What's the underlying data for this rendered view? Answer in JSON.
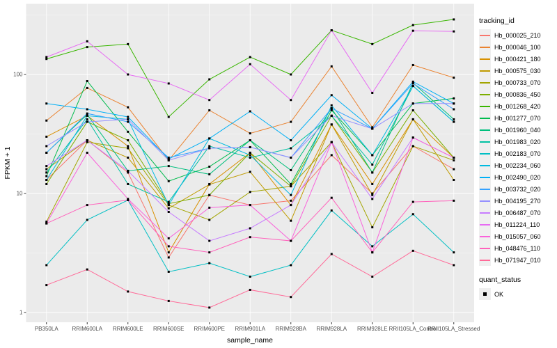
{
  "figure": {
    "legend_title_tracking": "tracking_id",
    "legend_title_quant": "quant_status",
    "quant_ok_label": "OK"
  },
  "chart_data": {
    "type": "line",
    "title": "",
    "xlabel": "sample_name",
    "ylabel": "FPKM + 1",
    "y_scale": "log10",
    "y_ticks": [
      1,
      10,
      100
    ],
    "ylim": [
      1,
      390
    ],
    "grid": "white-on-gray",
    "legend_position": "right",
    "panel_background": "#EBEBEB",
    "gridline_color": "#FFFFFF",
    "tick_label_color": "#4D4D4D",
    "point_shape": "filled-black-square",
    "categories": [
      "PB350LA",
      "RRIM600LA",
      "RRIM600LE",
      "RRIM600SE",
      "RRIM600PE",
      "RRIM901LA",
      "RRIM928BA",
      "RRIM928LA",
      "RRIM928LE",
      "RRII105LA_Control",
      "RRII105LA_Stressed"
    ],
    "series": [
      {
        "name": "Hb_000025_210",
        "color": "#F8766D",
        "values": [
          13,
          28,
          15,
          2.9,
          9.7,
          8.0,
          8.7,
          21,
          10,
          25,
          16
        ]
      },
      {
        "name": "Hb_000046_100",
        "color": "#EA8331",
        "values": [
          41,
          77,
          53,
          19,
          50,
          32,
          40,
          117,
          36,
          120,
          94
        ]
      },
      {
        "name": "Hb_000421_180",
        "color": "#D89000",
        "values": [
          30,
          45,
          25,
          3.2,
          12,
          22,
          8.0,
          38,
          12,
          42,
          20
        ]
      },
      {
        "name": "Hb_000575_030",
        "color": "#C09B00",
        "values": [
          16,
          28,
          20,
          7.5,
          11.9,
          15.2,
          5.9,
          38,
          9.7,
          42,
          13
        ]
      },
      {
        "name": "Hb_000733_070",
        "color": "#A3A500",
        "values": [
          5.8,
          27,
          24,
          8.0,
          6.0,
          10.3,
          11.5,
          27,
          5.2,
          25,
          19
        ]
      },
      {
        "name": "Hb_000836_450",
        "color": "#7CAE00",
        "values": [
          12,
          40,
          28,
          8.2,
          9.7,
          22,
          11.5,
          45,
          15,
          50,
          20
        ]
      },
      {
        "name": "Hb_001268_420",
        "color": "#39B600",
        "values": [
          135,
          170,
          180,
          44,
          91,
          140,
          100,
          235,
          180,
          260,
          290
        ]
      },
      {
        "name": "Hb_001277_070",
        "color": "#00BB4E",
        "values": [
          14,
          88,
          33,
          12.7,
          16.8,
          28,
          12,
          50,
          21,
          57,
          63
        ]
      },
      {
        "name": "Hb_001960_040",
        "color": "#00BF7D",
        "values": [
          22,
          46,
          15.5,
          17,
          14.5,
          28,
          15.7,
          52,
          15,
          85,
          42
        ]
      },
      {
        "name": "Hb_001983_020",
        "color": "#00C1A3",
        "values": [
          15,
          42,
          12,
          8.5,
          25,
          20,
          24,
          45,
          17.5,
          80,
          40
        ]
      },
      {
        "name": "Hb_002183_070",
        "color": "#00BFC4",
        "values": [
          2.5,
          6.0,
          8.8,
          2.2,
          2.6,
          2.0,
          2.5,
          7.2,
          3.6,
          6.7,
          3.2
        ]
      },
      {
        "name": "Hb_002234_060",
        "color": "#00BAE0",
        "values": [
          13,
          45,
          42,
          8.0,
          29,
          21,
          9.7,
          55,
          21,
          80,
          40
        ]
      },
      {
        "name": "Hb_002490_020",
        "color": "#00B0F6",
        "values": [
          57,
          51,
          44,
          19.5,
          29,
          49,
          28,
          67,
          35,
          87,
          57
        ]
      },
      {
        "name": "Hb_003732_020",
        "color": "#35A2FF",
        "values": [
          22,
          47,
          40,
          20,
          24,
          24.5,
          20,
          52,
          35,
          84,
          51
        ]
      },
      {
        "name": "Hb_004195_270",
        "color": "#9590FF",
        "values": [
          25,
          40,
          42,
          19,
          24,
          24.5,
          20,
          45,
          35,
          57,
          57
        ]
      },
      {
        "name": "Hb_006487_070",
        "color": "#C77CFF",
        "values": [
          17,
          28,
          15.5,
          7.0,
          4.0,
          5.1,
          8.0,
          27,
          9.0,
          29.5,
          20
        ]
      },
      {
        "name": "Hb_011224_110",
        "color": "#E76BF3",
        "values": [
          140,
          190,
          100,
          84,
          61,
          122,
          61,
          235,
          70,
          233,
          230
        ]
      },
      {
        "name": "Hb_015057_060",
        "color": "#FA62DB",
        "values": [
          5.6,
          22,
          9.0,
          4.2,
          7.6,
          8.0,
          4.0,
          27,
          3.2,
          29.5,
          20
        ]
      },
      {
        "name": "Hb_048476_110",
        "color": "#FF62BC",
        "values": [
          5.6,
          8.0,
          8.8,
          3.6,
          3.2,
          4.3,
          4.0,
          9.2,
          3.2,
          8.5,
          8.7
        ]
      },
      {
        "name": "Hb_071947_010",
        "color": "#FF6A98",
        "values": [
          1.7,
          2.3,
          1.5,
          1.25,
          1.1,
          1.55,
          1.35,
          3.1,
          2.0,
          3.3,
          2.5
        ]
      }
    ]
  }
}
